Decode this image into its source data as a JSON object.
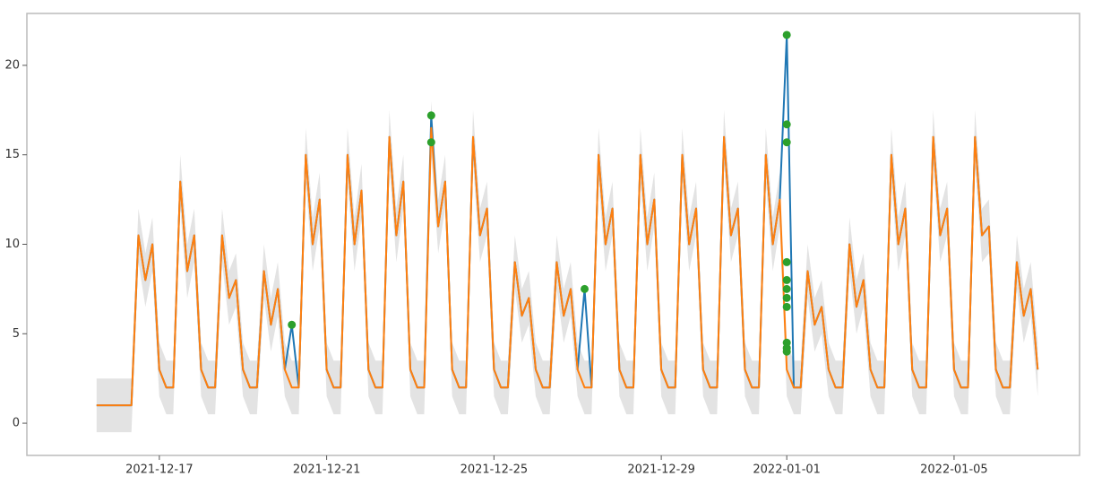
{
  "chart_data": {
    "type": "line",
    "x": [
      "2021-12-15T12:00",
      "2021-12-15T16:00",
      "2021-12-15T20:00",
      "2021-12-16T00:00",
      "2021-12-16T04:00",
      "2021-12-16T08:00",
      "2021-12-16T12:00",
      "2021-12-16T16:00",
      "2021-12-16T20:00",
      "2021-12-17T00:00",
      "2021-12-17T04:00",
      "2021-12-17T08:00",
      "2021-12-17T12:00",
      "2021-12-17T16:00",
      "2021-12-17T20:00",
      "2021-12-18T00:00",
      "2021-12-18T04:00",
      "2021-12-18T08:00",
      "2021-12-18T12:00",
      "2021-12-18T16:00",
      "2021-12-18T20:00",
      "2021-12-19T00:00",
      "2021-12-19T04:00",
      "2021-12-19T08:00",
      "2021-12-19T12:00",
      "2021-12-19T16:00",
      "2021-12-19T20:00",
      "2021-12-20T00:00",
      "2021-12-20T04:00",
      "2021-12-20T08:00",
      "2021-12-20T12:00",
      "2021-12-20T16:00",
      "2021-12-20T20:00",
      "2021-12-21T00:00",
      "2021-12-21T04:00",
      "2021-12-21T08:00",
      "2021-12-21T12:00",
      "2021-12-21T16:00",
      "2021-12-21T20:00",
      "2021-12-22T00:00",
      "2021-12-22T04:00",
      "2021-12-22T08:00",
      "2021-12-22T12:00",
      "2021-12-22T16:00",
      "2021-12-22T20:00",
      "2021-12-23T00:00",
      "2021-12-23T04:00",
      "2021-12-23T08:00",
      "2021-12-23T12:00",
      "2021-12-23T16:00",
      "2021-12-23T20:00",
      "2021-12-24T00:00",
      "2021-12-24T04:00",
      "2021-12-24T08:00",
      "2021-12-24T12:00",
      "2021-12-24T16:00",
      "2021-12-24T20:00",
      "2021-12-25T00:00",
      "2021-12-25T04:00",
      "2021-12-25T08:00",
      "2021-12-25T12:00",
      "2021-12-25T16:00",
      "2021-12-25T20:00",
      "2021-12-26T00:00",
      "2021-12-26T04:00",
      "2021-12-26T08:00",
      "2021-12-26T12:00",
      "2021-12-26T16:00",
      "2021-12-26T20:00",
      "2021-12-27T00:00",
      "2021-12-27T04:00",
      "2021-12-27T08:00",
      "2021-12-27T12:00",
      "2021-12-27T16:00",
      "2021-12-27T20:00",
      "2021-12-28T00:00",
      "2021-12-28T04:00",
      "2021-12-28T08:00",
      "2021-12-28T12:00",
      "2021-12-28T16:00",
      "2021-12-28T20:00",
      "2021-12-29T00:00",
      "2021-12-29T04:00",
      "2021-12-29T08:00",
      "2021-12-29T12:00",
      "2021-12-29T16:00",
      "2021-12-29T20:00",
      "2021-12-30T00:00",
      "2021-12-30T04:00",
      "2021-12-30T08:00",
      "2021-12-30T12:00",
      "2021-12-30T16:00",
      "2021-12-30T20:00",
      "2021-12-31T00:00",
      "2021-12-31T04:00",
      "2021-12-31T08:00",
      "2021-12-31T12:00",
      "2021-12-31T16:00",
      "2021-12-31T20:00",
      "2022-01-01T00:00",
      "2022-01-01T04:00",
      "2022-01-01T08:00",
      "2022-01-01T12:00",
      "2022-01-01T16:00",
      "2022-01-01T20:00",
      "2022-01-02T00:00",
      "2022-01-02T04:00",
      "2022-01-02T08:00",
      "2022-01-02T12:00",
      "2022-01-02T16:00",
      "2022-01-02T20:00",
      "2022-01-03T00:00",
      "2022-01-03T04:00",
      "2022-01-03T08:00",
      "2022-01-03T12:00",
      "2022-01-03T16:00",
      "2022-01-03T20:00",
      "2022-01-04T00:00",
      "2022-01-04T04:00",
      "2022-01-04T08:00",
      "2022-01-04T12:00",
      "2022-01-04T16:00",
      "2022-01-04T20:00",
      "2022-01-05T00:00",
      "2022-01-05T04:00",
      "2022-01-05T08:00",
      "2022-01-05T12:00",
      "2022-01-05T16:00",
      "2022-01-05T20:00",
      "2022-01-06T00:00",
      "2022-01-06T04:00",
      "2022-01-06T08:00",
      "2022-01-06T12:00",
      "2022-01-06T16:00",
      "2022-01-06T20:00",
      "2022-01-07T00:00"
    ],
    "band": {
      "color": "#d9d9d9",
      "lower": [
        -0.5,
        -0.5,
        -0.5,
        -0.5,
        -0.5,
        -0.5,
        9,
        6.5,
        8.5,
        1.5,
        0.5,
        0.5,
        12,
        7,
        9,
        1.5,
        0.5,
        0.5,
        9,
        5.5,
        6.5,
        1.5,
        0.5,
        0.5,
        7,
        4,
        6,
        1.5,
        0.5,
        0.5,
        13.5,
        8.5,
        11,
        1.5,
        0.5,
        0.5,
        13.5,
        8.5,
        11.5,
        1.5,
        0.5,
        0.5,
        14.5,
        9,
        12,
        1.5,
        0.5,
        0.5,
        15,
        9.5,
        12,
        1.5,
        0.5,
        0.5,
        14.5,
        9,
        10.5,
        1.5,
        0.5,
        0.5,
        7.5,
        4.5,
        5.5,
        1.5,
        0.5,
        0.5,
        7.5,
        4.5,
        6,
        1.5,
        0.5,
        0.5,
        13.5,
        8.5,
        10.5,
        1.5,
        0.5,
        0.5,
        13.5,
        8.5,
        11,
        1.5,
        0.5,
        0.5,
        13.5,
        8.5,
        10.5,
        1.5,
        0.5,
        0.5,
        14.5,
        9,
        10.5,
        1.5,
        0.5,
        0.5,
        13.5,
        8.5,
        11,
        1.5,
        0.5,
        0.5,
        7,
        4,
        5,
        1.5,
        0.5,
        0.5,
        8.5,
        5,
        6.5,
        1.5,
        0.5,
        0.5,
        13.5,
        8.5,
        10.5,
        1.5,
        0.5,
        0.5,
        14.5,
        9,
        10.5,
        1.5,
        0.5,
        0.5,
        14.5,
        9,
        9.5,
        1.5,
        0.5,
        0.5,
        7.5,
        4.5,
        6,
        1.5
      ],
      "upper": [
        2.5,
        2.5,
        2.5,
        2.5,
        2.5,
        2.5,
        12,
        9.5,
        11.5,
        4.5,
        3.5,
        3.5,
        15,
        10,
        12,
        4.5,
        3.5,
        3.5,
        12,
        8.5,
        9.5,
        4.5,
        3.5,
        3.5,
        10,
        7,
        9,
        4.5,
        3.5,
        3.5,
        16.5,
        11.5,
        14,
        4.5,
        3.5,
        3.5,
        16.5,
        11.5,
        14.5,
        4.5,
        3.5,
        3.5,
        17.5,
        12,
        15,
        4.5,
        3.5,
        3.5,
        18,
        12.5,
        15,
        4.5,
        3.5,
        3.5,
        17.5,
        12,
        13.5,
        4.5,
        3.5,
        3.5,
        10.5,
        7.5,
        8.5,
        4.5,
        3.5,
        3.5,
        10.5,
        7.5,
        9,
        4.5,
        3.5,
        3.5,
        16.5,
        11.5,
        13.5,
        4.5,
        3.5,
        3.5,
        16.5,
        11.5,
        14,
        4.5,
        3.5,
        3.5,
        16.5,
        11.5,
        13.5,
        4.5,
        3.5,
        3.5,
        17.5,
        12,
        13.5,
        4.5,
        3.5,
        3.5,
        16.5,
        11.5,
        14,
        4.5,
        3.5,
        3.5,
        10,
        7,
        8,
        4.5,
        3.5,
        3.5,
        11.5,
        8,
        9.5,
        4.5,
        3.5,
        3.5,
        16.5,
        11.5,
        13.5,
        4.5,
        3.5,
        3.5,
        17.5,
        12,
        13.5,
        4.5,
        3.5,
        3.5,
        17.5,
        12,
        12.5,
        4.5,
        3.5,
        3.5,
        10.5,
        7.5,
        9,
        4.5
      ]
    },
    "series": [
      {
        "color": "#1f77b4",
        "values": [
          1,
          1,
          1,
          1,
          1,
          1,
          10.5,
          8,
          10,
          3,
          2,
          2,
          13.5,
          8.5,
          10.5,
          3,
          2,
          2,
          10.5,
          7,
          8,
          3,
          2,
          2,
          8.5,
          5.5,
          7.5,
          3,
          5.5,
          2,
          15,
          10,
          12.5,
          3,
          2,
          2,
          15,
          10,
          13,
          3,
          2,
          2,
          16,
          10.5,
          13.5,
          3,
          2,
          2,
          17.2,
          11,
          13.5,
          3,
          2,
          2,
          16,
          10.5,
          12,
          3,
          2,
          2,
          9,
          6,
          7,
          3,
          2,
          2,
          9,
          6,
          7.5,
          3,
          7.5,
          2,
          15,
          10,
          12,
          3,
          2,
          2,
          15,
          10,
          12.5,
          3,
          2,
          2,
          15,
          10,
          12,
          3,
          2,
          2,
          16,
          10.5,
          12,
          3,
          2,
          2,
          15,
          10,
          12.5,
          21.7,
          2,
          2,
          8.5,
          5.5,
          6.5,
          3,
          2,
          2,
          10,
          6.5,
          8,
          3,
          2,
          2,
          15,
          10,
          12,
          3,
          2,
          2,
          16,
          10.5,
          12,
          3,
          2,
          2,
          16,
          10.5,
          11,
          3,
          2,
          2,
          9,
          6,
          7.5,
          3
        ]
      },
      {
        "color": "#ff7f0e",
        "values": [
          1,
          1,
          1,
          1,
          1,
          1,
          10.5,
          8,
          10,
          3,
          2,
          2,
          13.5,
          8.5,
          10.5,
          3,
          2,
          2,
          10.5,
          7,
          8,
          3,
          2,
          2,
          8.5,
          5.5,
          7.5,
          3,
          2,
          2,
          15,
          10,
          12.5,
          3,
          2,
          2,
          15,
          10,
          13,
          3,
          2,
          2,
          16,
          10.5,
          13.5,
          3,
          2,
          2,
          16.5,
          11,
          13.5,
          3,
          2,
          2,
          16,
          10.5,
          12,
          3,
          2,
          2,
          9,
          6,
          7,
          3,
          2,
          2,
          9,
          6,
          7.5,
          3,
          2,
          2,
          15,
          10,
          12,
          3,
          2,
          2,
          15,
          10,
          12.5,
          3,
          2,
          2,
          15,
          10,
          12,
          3,
          2,
          2,
          16,
          10.5,
          12,
          3,
          2,
          2,
          15,
          10,
          12.5,
          3,
          2,
          2,
          8.5,
          5.5,
          6.5,
          3,
          2,
          2,
          10,
          6.5,
          8,
          3,
          2,
          2,
          15,
          10,
          12,
          3,
          2,
          2,
          16,
          10.5,
          12,
          3,
          2,
          2,
          16,
          10.5,
          11,
          3,
          2,
          2,
          9,
          6,
          7.5,
          3
        ]
      }
    ],
    "anomalies": {
      "color": "#2ca02c",
      "x": [
        "2021-12-20T04:00",
        "2021-12-23T12:00",
        "2021-12-23T12:00",
        "2021-12-27T04:00",
        "2022-01-01T00:00",
        "2022-01-01T00:00",
        "2022-01-01T00:00",
        "2022-01-01T00:00",
        "2022-01-01T00:00",
        "2022-01-01T00:00",
        "2022-01-01T00:00",
        "2022-01-01T00:00",
        "2022-01-01T00:00",
        "2022-01-01T00:00",
        "2022-01-01T00:00"
      ],
      "values": [
        5.5,
        17.2,
        15.7,
        7.5,
        21.7,
        16.7,
        15.7,
        9,
        8,
        7.5,
        7,
        6.5,
        4.5,
        4.2,
        4
      ]
    },
    "xlim": [
      "2021-12-13T20:00",
      "2022-01-08T00:00"
    ],
    "xticks": [
      "2021-12-17",
      "2021-12-21",
      "2021-12-25",
      "2021-12-29",
      "2022-01-01",
      "2022-01-05"
    ],
    "ylim": [
      -1.8,
      22.9
    ],
    "yticks": [
      0,
      5,
      10,
      15,
      20
    ]
  }
}
